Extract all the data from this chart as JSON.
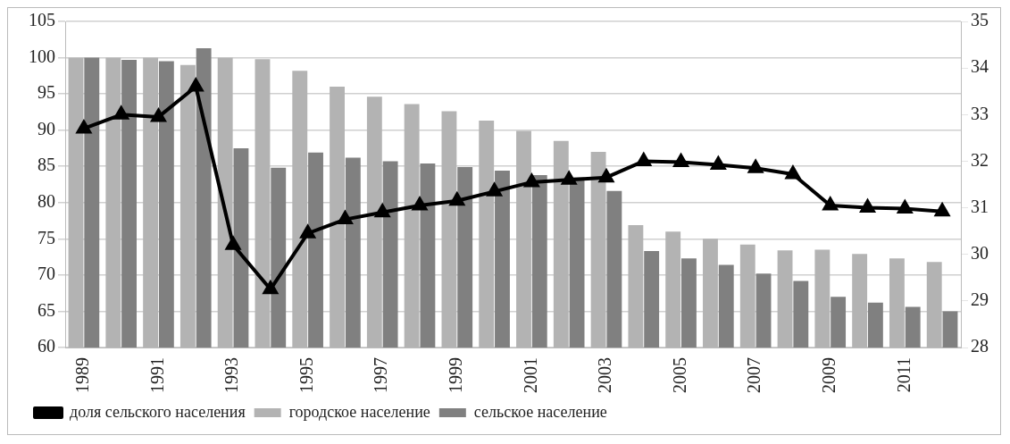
{
  "chart_data": {
    "type": "bar",
    "categories": [
      "1989",
      null,
      "1991",
      null,
      "1993",
      null,
      "1995",
      null,
      "1997",
      null,
      "1999",
      null,
      "2001",
      null,
      "2003",
      null,
      "2005",
      null,
      "2007",
      null,
      "2009",
      null,
      "2011",
      null
    ],
    "series": [
      {
        "name": "городское население",
        "color": "#b3b3b3",
        "values": [
          100,
          100,
          100,
          99,
          100,
          99.8,
          98.2,
          96,
          94.6,
          93.6,
          92.6,
          91.3,
          89.9,
          88.5,
          87,
          76.9,
          76,
          75,
          74.2,
          73.4,
          73.5,
          72.9,
          72.3,
          71.8
        ]
      },
      {
        "name": "сельское население",
        "color": "#808080",
        "values": [
          100,
          99.7,
          99.5,
          101.3,
          87.5,
          84.8,
          86.9,
          86.2,
          85.7,
          85.4,
          84.9,
          84.4,
          83.8,
          83.5,
          81.6,
          73.3,
          72.3,
          71.4,
          70.2,
          69.2,
          67,
          66.2,
          65.6,
          65
        ]
      },
      {
        "name": "доля сельского населения",
        "type": "line",
        "axis": "y2",
        "color": "#000000",
        "marker": "triangle",
        "values": [
          32.7,
          33,
          32.95,
          33.6,
          30.2,
          29.25,
          30.45,
          30.75,
          30.9,
          31.05,
          31.15,
          31.35,
          31.55,
          31.6,
          31.65,
          32,
          31.98,
          31.92,
          31.85,
          31.72,
          31.05,
          31,
          30.98,
          30.92
        ]
      }
    ],
    "ylim": [
      60,
      105
    ],
    "yticks": [
      60,
      65,
      70,
      75,
      80,
      85,
      90,
      95,
      100,
      105
    ],
    "y2lim": [
      28,
      35
    ],
    "y2ticks": [
      28,
      29,
      30,
      31,
      32,
      33,
      34,
      35
    ],
    "grid": "y",
    "legend": "bottom"
  }
}
